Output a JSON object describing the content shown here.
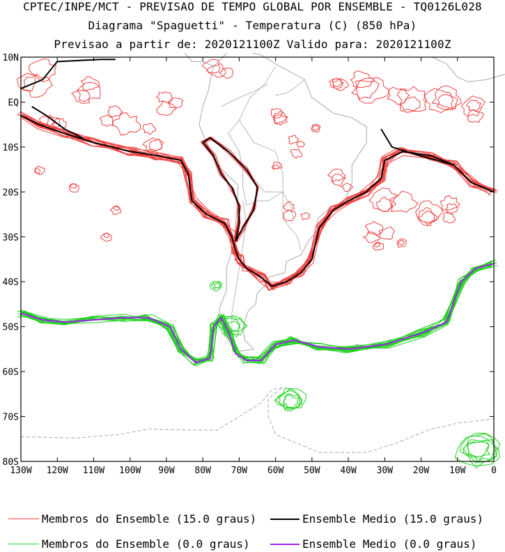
{
  "header": {
    "line1": "CPTEC/INPE/MCT - PREVISAO DE TEMPO GLOBAL POR ENSEMBLE - TQ0126L028",
    "line2": "Diagrama \"Spaguetti\" - Temperatura (C) (850 hPa)",
    "line3": "Previsao a partir de: 2020121100Z  Valido para: 2020121100Z"
  },
  "map": {
    "lat_labels": [
      "10N",
      "EQ",
      "10S",
      "20S",
      "30S",
      "40S",
      "50S",
      "60S",
      "70S",
      "80S"
    ],
    "lat_values": [
      10,
      0,
      -10,
      -20,
      -30,
      -40,
      -50,
      -60,
      -70,
      -80
    ],
    "lon_labels": [
      "130W",
      "120W",
      "110W",
      "100W",
      "90W",
      "80W",
      "70W",
      "60W",
      "50W",
      "40W",
      "30W",
      "20W",
      "10W",
      "0"
    ],
    "lon_values": [
      -130,
      -120,
      -110,
      -100,
      -90,
      -80,
      -70,
      -60,
      -50,
      -40,
      -30,
      -20,
      -10,
      0
    ],
    "lon_range": [
      -130,
      0
    ],
    "lat_range": [
      -80,
      10
    ]
  },
  "legend": {
    "items": [
      {
        "label": "Membros do Ensemble (15.0 graus)",
        "color": "#f04040"
      },
      {
        "label": "Ensemble Medio (15.0 graus)",
        "color": "#000000"
      },
      {
        "label": "Membros do Ensemble (0.0 graus)",
        "color": "#20d020"
      },
      {
        "label": "Ensemble Medio (0.0 graus)",
        "color": "#a020f0"
      }
    ]
  },
  "colors": {
    "member_warm": "#f04040",
    "mean_warm": "#000000",
    "member_cold": "#20d020",
    "mean_cold": "#a020f0",
    "coast": "#a8a8a8"
  }
}
